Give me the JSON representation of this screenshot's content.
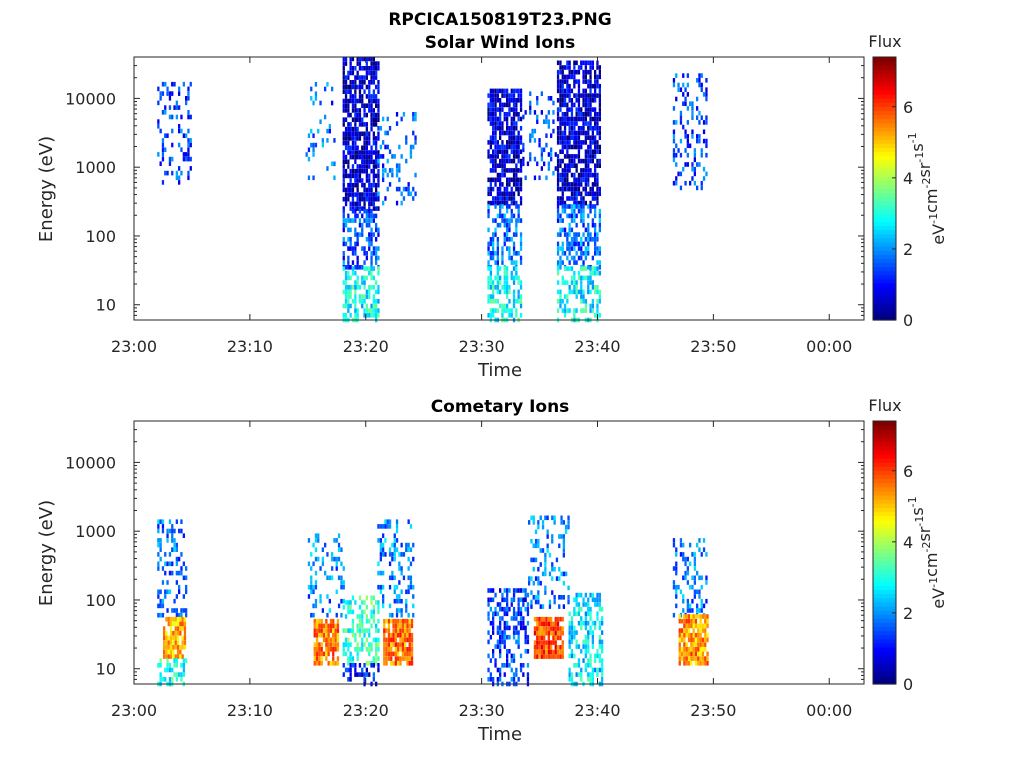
{
  "figure": {
    "title": "RPCICA150819T23.PNG"
  },
  "chart_data": [
    {
      "type": "heatmap",
      "title": "Solar Wind Ions",
      "xlabel": "Time",
      "ylabel": "Energy (eV)",
      "y_scale": "log",
      "xlim_minutes_after_23_00": [
        0,
        63
      ],
      "ylim": [
        6,
        40000
      ],
      "x_ticks": [
        {
          "value": 0,
          "label": "23:00"
        },
        {
          "value": 10,
          "label": "23:10"
        },
        {
          "value": 20,
          "label": "23:20"
        },
        {
          "value": 30,
          "label": "23:30"
        },
        {
          "value": 40,
          "label": "23:40"
        },
        {
          "value": 50,
          "label": "23:50"
        },
        {
          "value": 60,
          "label": "00:00"
        }
      ],
      "y_ticks": [
        {
          "value": 10,
          "label": "10"
        },
        {
          "value": 100,
          "label": "100"
        },
        {
          "value": 1000,
          "label": "1000"
        },
        {
          "value": 10000,
          "label": "10000"
        }
      ],
      "colorbar": {
        "label": "Flux",
        "unit_label": "eV-1cm-2sr-1s-1",
        "range": [
          0,
          7.4
        ],
        "ticks": [
          {
            "value": 0,
            "label": "0"
          },
          {
            "value": 2,
            "label": "2"
          },
          {
            "value": 4,
            "label": "4"
          },
          {
            "value": 6,
            "label": "6"
          }
        ],
        "colormap": "jet"
      },
      "data_patches": [
        {
          "t_start": 2.0,
          "t_end": 5.0,
          "e_min": 600,
          "e_max": 18000,
          "flux_mean": 1.4,
          "density": 0.3
        },
        {
          "t_start": 14.8,
          "t_end": 17.3,
          "e_min": 700,
          "e_max": 17000,
          "flux_mean": 1.7,
          "density": 0.15
        },
        {
          "t_start": 18.0,
          "t_end": 21.0,
          "e_min": 250,
          "e_max": 38000,
          "flux_mean": 0.6,
          "density": 0.75
        },
        {
          "t_start": 18.0,
          "t_end": 21.0,
          "e_min": 35,
          "e_max": 250,
          "flux_mean": 1.5,
          "density": 0.55
        },
        {
          "t_start": 18.0,
          "t_end": 21.0,
          "e_min": 6,
          "e_max": 35,
          "flux_mean": 2.8,
          "density": 0.55
        },
        {
          "t_start": 21.0,
          "t_end": 24.3,
          "e_min": 300,
          "e_max": 6000,
          "flux_mean": 1.5,
          "density": 0.25
        },
        {
          "t_start": 30.5,
          "t_end": 33.5,
          "e_min": 300,
          "e_max": 15000,
          "flux_mean": 0.6,
          "density": 0.75
        },
        {
          "t_start": 30.5,
          "t_end": 33.5,
          "e_min": 35,
          "e_max": 300,
          "flux_mean": 1.7,
          "density": 0.5
        },
        {
          "t_start": 30.5,
          "t_end": 33.5,
          "e_min": 6,
          "e_max": 35,
          "flux_mean": 2.8,
          "density": 0.5
        },
        {
          "t_start": 33.5,
          "t_end": 36.5,
          "e_min": 700,
          "e_max": 13000,
          "flux_mean": 1.4,
          "density": 0.2
        },
        {
          "t_start": 36.5,
          "t_end": 40.2,
          "e_min": 300,
          "e_max": 38000,
          "flux_mean": 0.6,
          "density": 0.75
        },
        {
          "t_start": 36.5,
          "t_end": 40.2,
          "e_min": 35,
          "e_max": 300,
          "flux_mean": 1.7,
          "density": 0.5
        },
        {
          "t_start": 36.5,
          "t_end": 40.2,
          "e_min": 6,
          "e_max": 35,
          "flux_mean": 2.8,
          "density": 0.5
        },
        {
          "t_start": 46.5,
          "t_end": 49.5,
          "e_min": 500,
          "e_max": 22000,
          "flux_mean": 1.4,
          "density": 0.3
        }
      ]
    },
    {
      "type": "heatmap",
      "title": "Cometary Ions",
      "xlabel": "Time",
      "ylabel": "Energy (eV)",
      "y_scale": "log",
      "xlim_minutes_after_23_00": [
        0,
        63
      ],
      "ylim": [
        6,
        40000
      ],
      "x_ticks": [
        {
          "value": 0,
          "label": "23:00"
        },
        {
          "value": 10,
          "label": "23:10"
        },
        {
          "value": 20,
          "label": "23:20"
        },
        {
          "value": 30,
          "label": "23:30"
        },
        {
          "value": 40,
          "label": "23:40"
        },
        {
          "value": 50,
          "label": "23:50"
        },
        {
          "value": 60,
          "label": "00:00"
        }
      ],
      "y_ticks": [
        {
          "value": 10,
          "label": "10"
        },
        {
          "value": 100,
          "label": "100"
        },
        {
          "value": 1000,
          "label": "1000"
        },
        {
          "value": 10000,
          "label": "10000"
        }
      ],
      "colorbar": {
        "label": "Flux",
        "unit_label": "eV-1cm-2sr-1s-1",
        "range": [
          0,
          7.4
        ],
        "ticks": [
          {
            "value": 0,
            "label": "0"
          },
          {
            "value": 2,
            "label": "2"
          },
          {
            "value": 4,
            "label": "4"
          },
          {
            "value": 6,
            "label": "6"
          }
        ],
        "colormap": "jet"
      },
      "data_patches": [
        {
          "t_start": 2.0,
          "t_end": 4.5,
          "e_min": 60,
          "e_max": 1600,
          "flux_mean": 1.8,
          "density": 0.3
        },
        {
          "t_start": 2.5,
          "t_end": 4.5,
          "e_min": 15,
          "e_max": 60,
          "flux_mean": 5.2,
          "density": 0.9
        },
        {
          "t_start": 2.0,
          "t_end": 4.5,
          "e_min": 6,
          "e_max": 15,
          "flux_mean": 3.0,
          "density": 0.4
        },
        {
          "t_start": 15.0,
          "t_end": 18.0,
          "e_min": 60,
          "e_max": 1000,
          "flux_mean": 1.9,
          "density": 0.3
        },
        {
          "t_start": 15.5,
          "t_end": 17.5,
          "e_min": 12,
          "e_max": 55,
          "flux_mean": 5.5,
          "density": 0.85
        },
        {
          "t_start": 18.0,
          "t_end": 21.0,
          "e_min": 12,
          "e_max": 120,
          "flux_mean": 3.2,
          "density": 0.5
        },
        {
          "t_start": 18.0,
          "t_end": 21.0,
          "e_min": 6,
          "e_max": 12,
          "flux_mean": 1.0,
          "density": 0.5
        },
        {
          "t_start": 21.0,
          "t_end": 24.0,
          "e_min": 60,
          "e_max": 1600,
          "flux_mean": 1.9,
          "density": 0.3
        },
        {
          "t_start": 21.5,
          "t_end": 24.0,
          "e_min": 12,
          "e_max": 55,
          "flux_mean": 5.6,
          "density": 0.9
        },
        {
          "t_start": 30.5,
          "t_end": 34.0,
          "e_min": 6,
          "e_max": 160,
          "flux_mean": 1.4,
          "density": 0.5
        },
        {
          "t_start": 34.0,
          "t_end": 37.5,
          "e_min": 80,
          "e_max": 1600,
          "flux_mean": 1.8,
          "density": 0.3
        },
        {
          "t_start": 34.5,
          "t_end": 37.0,
          "e_min": 15,
          "e_max": 60,
          "flux_mean": 6.0,
          "density": 0.9
        },
        {
          "t_start": 37.5,
          "t_end": 40.5,
          "e_min": 6,
          "e_max": 120,
          "flux_mean": 2.6,
          "density": 0.55
        },
        {
          "t_start": 46.5,
          "t_end": 49.5,
          "e_min": 60,
          "e_max": 800,
          "flux_mean": 1.8,
          "density": 0.3
        },
        {
          "t_start": 47.0,
          "t_end": 49.5,
          "e_min": 12,
          "e_max": 60,
          "flux_mean": 5.4,
          "density": 0.85
        }
      ]
    }
  ]
}
